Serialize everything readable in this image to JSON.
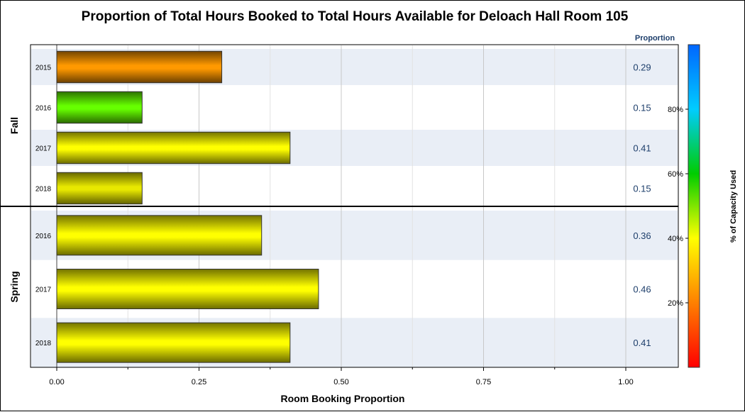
{
  "chart_data": {
    "type": "bar",
    "orientation": "horizontal",
    "title": "Proportion of Total Hours Booked to Total Hours Available for Deloach Hall Room 105",
    "xlabel": "Room Booking Proportion",
    "xlim": [
      0,
      1.0
    ],
    "xticks": [
      "0.00",
      "0.25",
      "0.50",
      "0.75",
      "1.00"
    ],
    "xtick_values": [
      0,
      0.25,
      0.5,
      0.75,
      1.0
    ],
    "grid": true,
    "value_column_header": "Proportion",
    "colorbar": {
      "label": "% of Capacity Used",
      "ticks": [
        "20%",
        "40%",
        "60%",
        "80%"
      ],
      "tick_values": [
        0.2,
        0.4,
        0.6,
        0.8
      ],
      "range": [
        0,
        1.0
      ],
      "gradient": [
        "#ff0000",
        "#ff8000",
        "#ffff00",
        "#00cc00",
        "#00ccff",
        "#0066ff"
      ]
    },
    "panels": [
      {
        "name": "Fall",
        "bars": [
          {
            "category": "2015",
            "value": 0.29,
            "label": "0.29",
            "color": "#ff9900"
          },
          {
            "category": "2016",
            "value": 0.15,
            "label": "0.15",
            "color": "#66ff00"
          },
          {
            "category": "2017",
            "value": 0.41,
            "label": "0.41",
            "color": "#ffff00"
          },
          {
            "category": "2018",
            "value": 0.15,
            "label": "0.15",
            "color": "#e8e800"
          }
        ]
      },
      {
        "name": "Spring",
        "bars": [
          {
            "category": "2016",
            "value": 0.36,
            "label": "0.36",
            "color": "#ffff00"
          },
          {
            "category": "2017",
            "value": 0.46,
            "label": "0.46",
            "color": "#ffff00"
          },
          {
            "category": "2018",
            "value": 0.41,
            "label": "0.41",
            "color": "#ffff00"
          }
        ]
      }
    ]
  }
}
